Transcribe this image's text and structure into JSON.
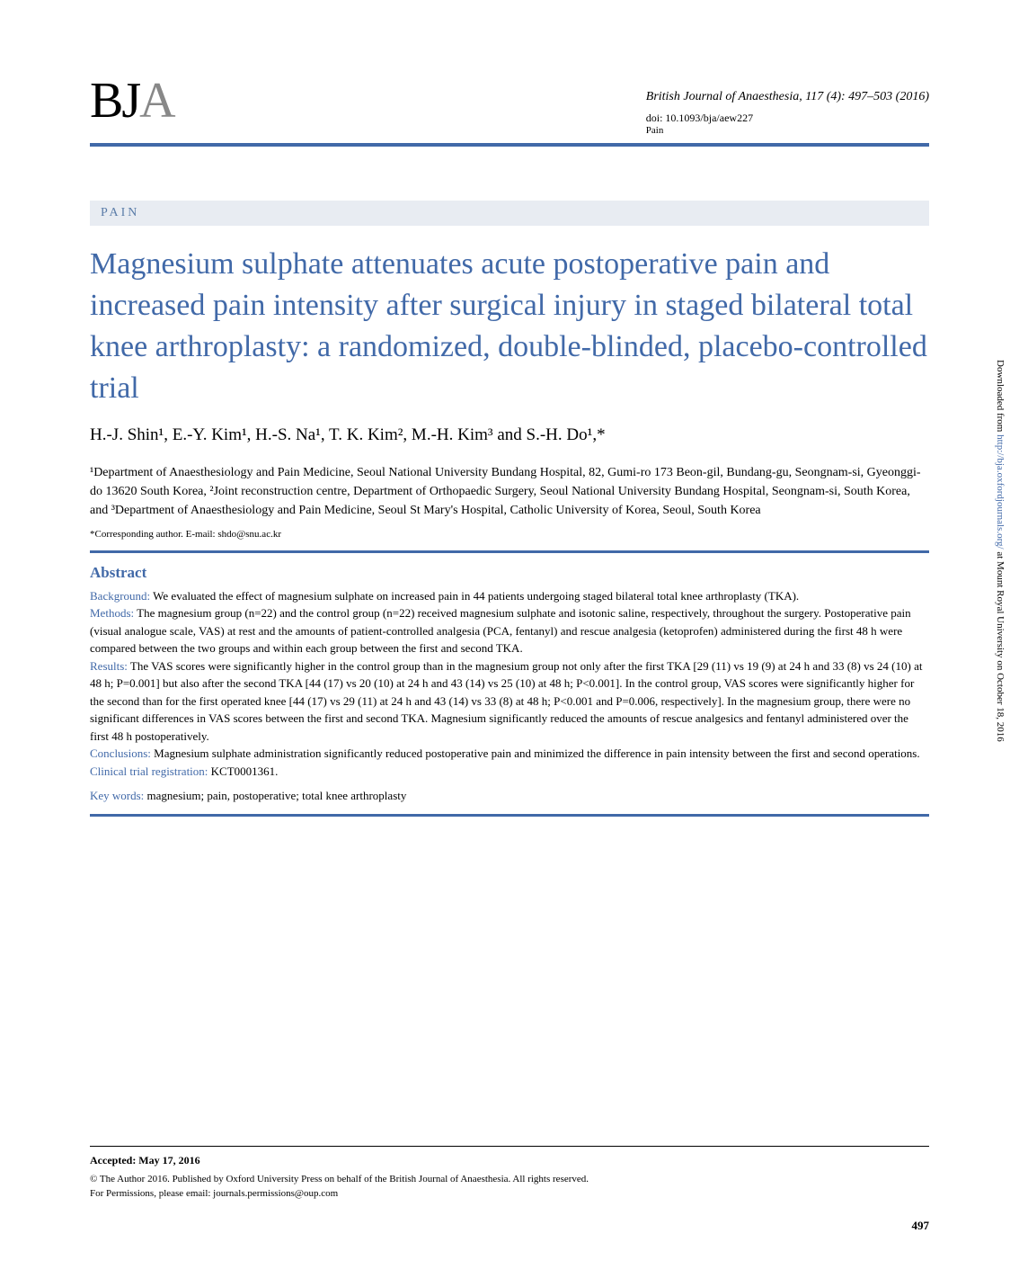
{
  "journal": {
    "logo_main": "BJ",
    "logo_light": "A",
    "citation": "British Journal of Anaesthesia, 117 (4): 497–503 (2016)",
    "doi": "doi: 10.1093/bja/aew227",
    "section": "Pain"
  },
  "article": {
    "section_tag": "PAIN",
    "title": "Magnesium sulphate attenuates acute postoperative pain and increased pain intensity after surgical injury in staged bilateral total knee arthroplasty: a randomized, double-blinded, placebo-controlled trial",
    "authors": "H.-J. Shin¹, E.-Y. Kim¹, H.-S. Na¹, T. K. Kim², M.-H. Kim³ and S.-H. Do¹,*",
    "affiliations": "¹Department of Anaesthesiology and Pain Medicine, Seoul National University Bundang Hospital, 82, Gumi-ro 173 Beon-gil, Bundang-gu, Seongnam-si, Gyeonggi-do 13620 South Korea, ²Joint reconstruction centre, Department of Orthopaedic Surgery, Seoul National University Bundang Hospital, Seongnam-si, South Korea, and ³Department of Anaesthesiology and Pain Medicine, Seoul St Mary's Hospital, Catholic University of Korea, Seoul, South Korea",
    "corresponding": "*Corresponding author. E-mail: shdo@snu.ac.kr"
  },
  "abstract": {
    "heading": "Abstract",
    "background_label": "Background:",
    "background_text": " We evaluated the effect of magnesium sulphate on increased pain in 44 patients undergoing staged bilateral total knee arthroplasty (TKA).",
    "methods_label": "Methods:",
    "methods_text": " The magnesium group (n=22) and the control group (n=22) received magnesium sulphate and isotonic saline, respectively, throughout the surgery. Postoperative pain (visual analogue scale, VAS) at rest and the amounts of patient-controlled analgesia (PCA, fentanyl) and rescue analgesia (ketoprofen) administered during the first 48 h were compared between the two groups and within each group between the first and second TKA.",
    "results_label": "Results:",
    "results_text": " The VAS scores were significantly higher in the control group than in the magnesium group not only after the first TKA [29 (11) vs 19 (9) at 24 h and 33 (8) vs 24 (10) at 48 h; P=0.001] but also after the second TKA [44 (17) vs 20 (10) at 24 h and 43 (14) vs 25 (10) at 48 h; P<0.001]. In the control group, VAS scores were significantly higher for the second than for the first operated knee [44 (17) vs 29 (11) at 24 h and 43 (14) vs 33 (8) at 48 h; P<0.001 and P=0.006, respectively]. In the magnesium group, there were no significant differences in VAS scores between the first and second TKA. Magnesium significantly reduced the amounts of rescue analgesics and fentanyl administered over the first 48 h postoperatively.",
    "conclusions_label": "Conclusions:",
    "conclusions_text": " Magnesium sulphate administration significantly reduced postoperative pain and minimized the difference in pain intensity between the first and second operations.",
    "registration_label": "Clinical trial registration:",
    "registration_text": " KCT0001361.",
    "keywords_label": "Key words:",
    "keywords_text": " magnesium; pain, postoperative; total knee arthroplasty"
  },
  "footer": {
    "accepted": "Accepted: May 17, 2016",
    "copyright_line1": "© The Author 2016. Published by Oxford University Press on behalf of the British Journal of Anaesthesia. All rights reserved.",
    "copyright_line2": "For Permissions, please email: journals.permissions@oup.com",
    "page_number": "497"
  },
  "sidebar": {
    "prefix": "Downloaded from ",
    "link_text": "http://bja.oxfordjournals.org/",
    "suffix": " at Mount Royal University on October 18, 2016"
  },
  "colors": {
    "blue": "#4169a8",
    "section_bg": "#e8ecf2",
    "gray": "#888888"
  }
}
